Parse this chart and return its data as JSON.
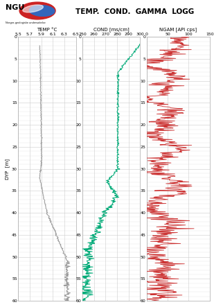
{
  "title": "TEMP.  COND.  GAMMA  LOGG",
  "depth_min": 0,
  "depth_max": 60,
  "ylabel": "DYP  [m]",
  "temp_label": "TEMP °C",
  "temp_xlim": [
    5.5,
    6.5
  ],
  "temp_xticks": [
    5.5,
    5.7,
    5.9,
    6.1,
    6.3,
    6.5
  ],
  "temp_xtick_labels": [
    "5.5",
    "5.7",
    "5.9",
    "6.1",
    "6.3",
    "6.5"
  ],
  "temp_color": "#999999",
  "cond_label": "COND [ms/cm]",
  "cond_xlim": [
    250,
    300
  ],
  "cond_xticks": [
    250,
    260,
    270,
    280,
    290,
    300
  ],
  "cond_xtick_labels": [
    "250",
    "260",
    "270",
    "280",
    "290",
    "300"
  ],
  "cond_color": "#00aa77",
  "gamma_label": "NGAM [API cps]",
  "gamma_xlim": [
    0,
    150
  ],
  "gamma_xticks": [
    0,
    50,
    100,
    150
  ],
  "gamma_xtick_labels": [
    "0",
    "50",
    "100",
    "150"
  ],
  "gamma_color": "#cc3333",
  "grid_color": "#cccccc",
  "background_color": "#ffffff",
  "ngu_text": "NGU",
  "ngu_subtitle": "Norges geologiske undersøkelse"
}
